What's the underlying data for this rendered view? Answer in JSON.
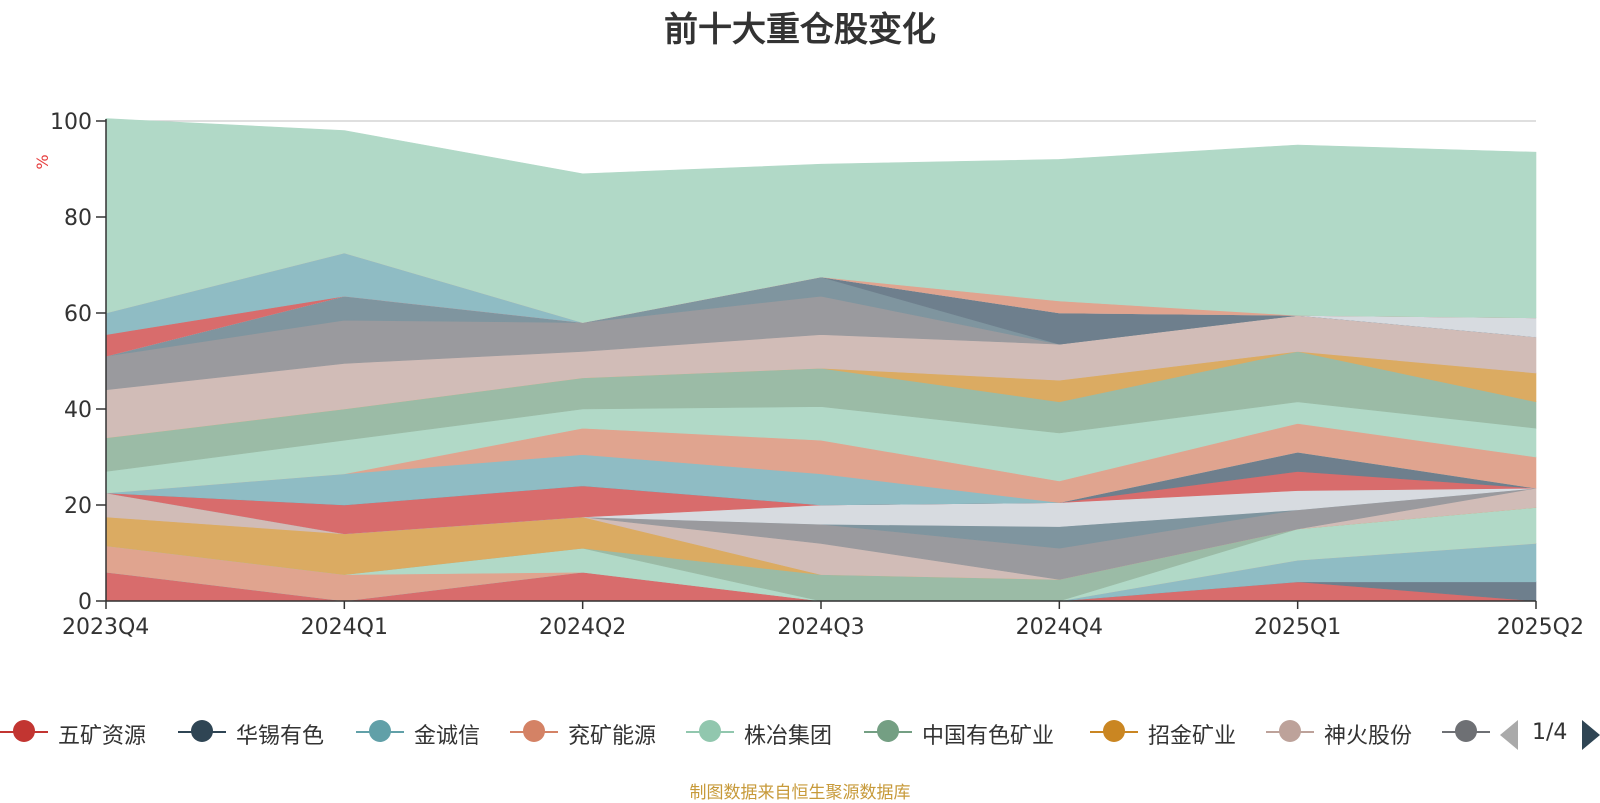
{
  "chart_data": {
    "type": "area",
    "stacked": true,
    "title": "前十大重仓股变化",
    "ylabel": "%",
    "ylim": [
      0,
      100
    ],
    "yticks": [
      0,
      20,
      40,
      60,
      80,
      100
    ],
    "grid": true,
    "legend_position": "bottom",
    "categories": [
      "2023Q4",
      "2024Q1",
      "2024Q2",
      "2024Q3",
      "2024Q4",
      "2025Q1",
      "2025Q2"
    ],
    "series": [
      {
        "name": "五矿资源",
        "color": "#d86c6c",
        "values": [
          6.0,
          0,
          6.0,
          0,
          0,
          4.0,
          0
        ]
      },
      {
        "name": "华锡有色",
        "color": "#6e7f8d",
        "values": [
          0,
          0,
          0,
          0,
          0,
          0,
          4.0
        ]
      },
      {
        "name": "金诚信",
        "color": "#8fbcc4",
        "values": [
          0,
          0,
          0,
          0,
          0,
          4.5,
          8.0
        ]
      },
      {
        "name": "兖矿能源",
        "color": "#e0a48f",
        "values": [
          5.5,
          5.5,
          0,
          0,
          0,
          0,
          0
        ]
      },
      {
        "name": "株冶集团",
        "color": "#b1d9c7",
        "values": [
          0,
          0,
          5.0,
          0,
          0,
          6.5,
          7.5
        ]
      },
      {
        "name": "中国有色矿业",
        "color": "#9bbba6",
        "values": [
          0,
          0,
          0,
          5.5,
          4.5,
          0,
          0
        ]
      },
      {
        "name": "招金矿业",
        "color": "#dbab62",
        "values": [
          6.0,
          8.5,
          6.5,
          0,
          0,
          0,
          0
        ]
      },
      {
        "name": "神火股份",
        "color": "#d1bcb7",
        "values": [
          5.0,
          0,
          0,
          6.5,
          0,
          0,
          4.0
        ]
      },
      {
        "name": "",
        "color": "#9a9a9e",
        "values": [
          0,
          0,
          0,
          4.0,
          6.5,
          4.0,
          0
        ]
      },
      {
        "name": "",
        "color": "#7f959f",
        "values": [
          0,
          0,
          0,
          0,
          4.5,
          0,
          0
        ]
      },
      {
        "name": "",
        "color": "#d7dbe0",
        "values": [
          0,
          0,
          0,
          4.0,
          5.0,
          4.0,
          0
        ]
      },
      {
        "name": "",
        "color": "#d86c6c",
        "values": [
          0,
          6.0,
          6.5,
          0,
          0,
          4.0,
          0
        ]
      },
      {
        "name": "",
        "color": "#6e7f8d",
        "values": [
          0,
          0,
          0,
          0,
          0,
          4.0,
          0
        ]
      },
      {
        "name": "",
        "color": "#8fbcc4",
        "values": [
          0,
          6.5,
          6.5,
          6.5,
          0,
          0,
          0
        ]
      },
      {
        "name": "",
        "color": "#e0a48f",
        "values": [
          0,
          0,
          5.5,
          7.0,
          4.5,
          6.0,
          6.5
        ]
      },
      {
        "name": "",
        "color": "#b1d9c7",
        "values": [
          4.5,
          7.0,
          4.0,
          7.0,
          10.0,
          4.5,
          6.0
        ]
      },
      {
        "name": "",
        "color": "#9bbba6",
        "values": [
          7.0,
          6.5,
          6.5,
          8.0,
          6.5,
          10.5,
          5.5
        ]
      },
      {
        "name": "",
        "color": "#dbab62",
        "values": [
          0,
          0,
          0,
          0,
          4.5,
          0,
          6.0
        ]
      },
      {
        "name": "",
        "color": "#d1bcb7",
        "values": [
          10.0,
          9.5,
          5.5,
          7.0,
          7.5,
          7.5,
          7.5
        ]
      },
      {
        "name": "",
        "color": "#9a9a9e",
        "values": [
          7.0,
          9.0,
          6.0,
          8.0,
          0,
          0,
          0
        ]
      },
      {
        "name": "",
        "color": "#7f959f",
        "values": [
          0,
          5.0,
          0,
          4.0,
          0,
          0,
          0
        ]
      },
      {
        "name": "",
        "color": "#6e7f8d",
        "values": [
          0,
          0,
          0,
          0,
          6.5,
          0,
          0
        ]
      },
      {
        "name": "",
        "color": "#d7dbe0",
        "values": [
          0,
          0,
          0,
          0,
          0,
          0,
          4.0
        ]
      },
      {
        "name": "",
        "color": "#d86c6c",
        "values": [
          4.5,
          0,
          0,
          0,
          0,
          0,
          0
        ]
      },
      {
        "name": "",
        "color": "#8fbcc4",
        "values": [
          4.5,
          9.0,
          0,
          0,
          0,
          0,
          0
        ]
      },
      {
        "name": "",
        "color": "#e0a48f",
        "values": [
          0,
          0,
          0,
          0,
          2.5,
          0,
          0
        ]
      },
      {
        "name": "",
        "color": "#b1d9c7",
        "values": [
          40.5,
          25.5,
          31.0,
          23.5,
          29.5,
          35.5,
          34.5
        ]
      }
    ]
  },
  "legend": {
    "items": [
      {
        "name": "五矿资源",
        "color": "#c23531"
      },
      {
        "name": "华锡有色",
        "color": "#2f4554"
      },
      {
        "name": "金诚信",
        "color": "#61a0a8"
      },
      {
        "name": "兖矿能源",
        "color": "#d48265"
      },
      {
        "name": "株冶集团",
        "color": "#91c7ae"
      },
      {
        "name": "中国有色矿业",
        "color": "#749f83"
      },
      {
        "name": "招金矿业",
        "color": "#ca8622"
      },
      {
        "name": "神火股份",
        "color": "#bda29a"
      },
      {
        "name": "",
        "color": "#6e7074"
      }
    ],
    "page": "1/4"
  },
  "source_note": "制图数据来自恒生聚源数据库",
  "colors": {
    "axis": "#333333",
    "grid": "#cccccc",
    "ylabel": "#e63c3c"
  }
}
